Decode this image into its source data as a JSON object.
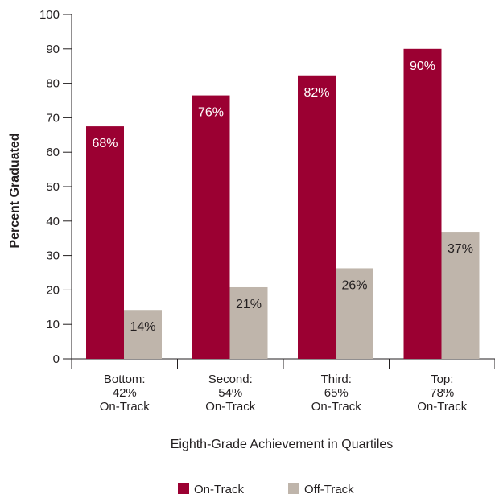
{
  "chart_data": {
    "type": "bar",
    "categories": [
      [
        "Bottom:",
        "42%",
        "On-Track"
      ],
      [
        "Second:",
        "54%",
        "On-Track"
      ],
      [
        "Third:",
        "65%",
        "On-Track"
      ],
      [
        "Top:",
        "78%",
        "On-Track"
      ]
    ],
    "series": [
      {
        "name": "On-Track",
        "color": "#9b0032",
        "values": [
          67.5,
          76.5,
          82.3,
          90
        ],
        "labels": [
          "68%",
          "76%",
          "82%",
          "90%"
        ],
        "label_color": "#ffffff"
      },
      {
        "name": "Off-Track",
        "color": "#bfb5ab",
        "values": [
          14.2,
          20.8,
          26.3,
          36.9
        ],
        "labels": [
          "14%",
          "21%",
          "26%",
          "37%"
        ],
        "label_color": "#231f20"
      }
    ],
    "xlabel": "Eighth-Grade Achievement in Quartiles",
    "ylabel": "Percent Graduated",
    "ylim": [
      0,
      100
    ],
    "yticks": [
      0,
      10,
      20,
      30,
      40,
      50,
      60,
      70,
      80,
      90,
      100
    ],
    "grid": false,
    "legend_position": "bottom-center"
  }
}
